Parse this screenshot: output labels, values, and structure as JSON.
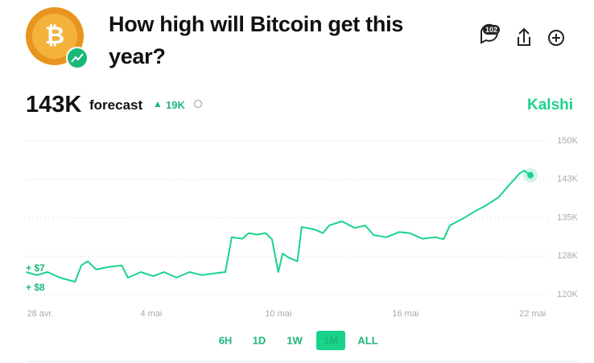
{
  "header": {
    "title": "How high will Bitcoin get this year?",
    "comments_count": "102",
    "forecast_value": "143K",
    "forecast_label": "forecast",
    "change": "19K",
    "source": "Kalshi"
  },
  "chart_data": {
    "type": "line",
    "color": "#1ad38a",
    "x": [
      0.1,
      0.6,
      1.1,
      1.7,
      2.4,
      2.7,
      3.0,
      3.4,
      4.0,
      4.6,
      4.9,
      5.5,
      6.1,
      6.6,
      7.2,
      7.8,
      8.4,
      8.9,
      9.5,
      9.8,
      10.3,
      10.6,
      11.0,
      11.4,
      11.7,
      12.0,
      12.2,
      12.5,
      12.9,
      13.1,
      13.7,
      14.1,
      14.4,
      15.0,
      15.6,
      16.1,
      16.5,
      17.1,
      17.7,
      18.2,
      18.8,
      19.4,
      19.8,
      20.1,
      20.7,
      21.3,
      21.8,
      22.4,
      22.9,
      23.4,
      23.6,
      23.9
    ],
    "values": [
      124.4,
      123.8,
      124.4,
      123.3,
      122.5,
      125.7,
      126.5,
      124.9,
      125.4,
      125.7,
      123.3,
      124.4,
      123.6,
      124.4,
      123.3,
      124.4,
      123.8,
      124.1,
      124.4,
      131.2,
      130.9,
      132.0,
      131.7,
      132.0,
      130.8,
      124.4,
      128.0,
      127.2,
      126.5,
      133.2,
      132.7,
      132.0,
      133.5,
      134.3,
      133.0,
      133.5,
      131.6,
      131.2,
      132.2,
      132.0,
      130.9,
      131.2,
      130.8,
      133.5,
      134.8,
      136.3,
      137.4,
      139.0,
      141.4,
      143.7,
      144.2,
      143.3
    ],
    "xlim": [
      0,
      25
    ],
    "xticks": [
      {
        "value": 0,
        "label": "28 avr."
      },
      {
        "value": 6,
        "label": "4 mai"
      },
      {
        "value": 12,
        "label": "10 mai"
      },
      {
        "value": 18,
        "label": "16 mai"
      },
      {
        "value": 24,
        "label": "22 mai"
      }
    ],
    "ylim": [
      120,
      150
    ],
    "yticks": [
      {
        "value": 120,
        "label": "120K"
      },
      {
        "value": 127.5,
        "label": "128K"
      },
      {
        "value": 135,
        "label": "135K"
      },
      {
        "value": 142.5,
        "label": "143K"
      },
      {
        "value": 150,
        "label": "150K"
      }
    ],
    "grid": true,
    "annotations": [
      "+ $7",
      "+ $8"
    ]
  },
  "range_buttons": [
    "6H",
    "1D",
    "1W",
    "1M",
    "ALL"
  ],
  "active_range": "1M"
}
